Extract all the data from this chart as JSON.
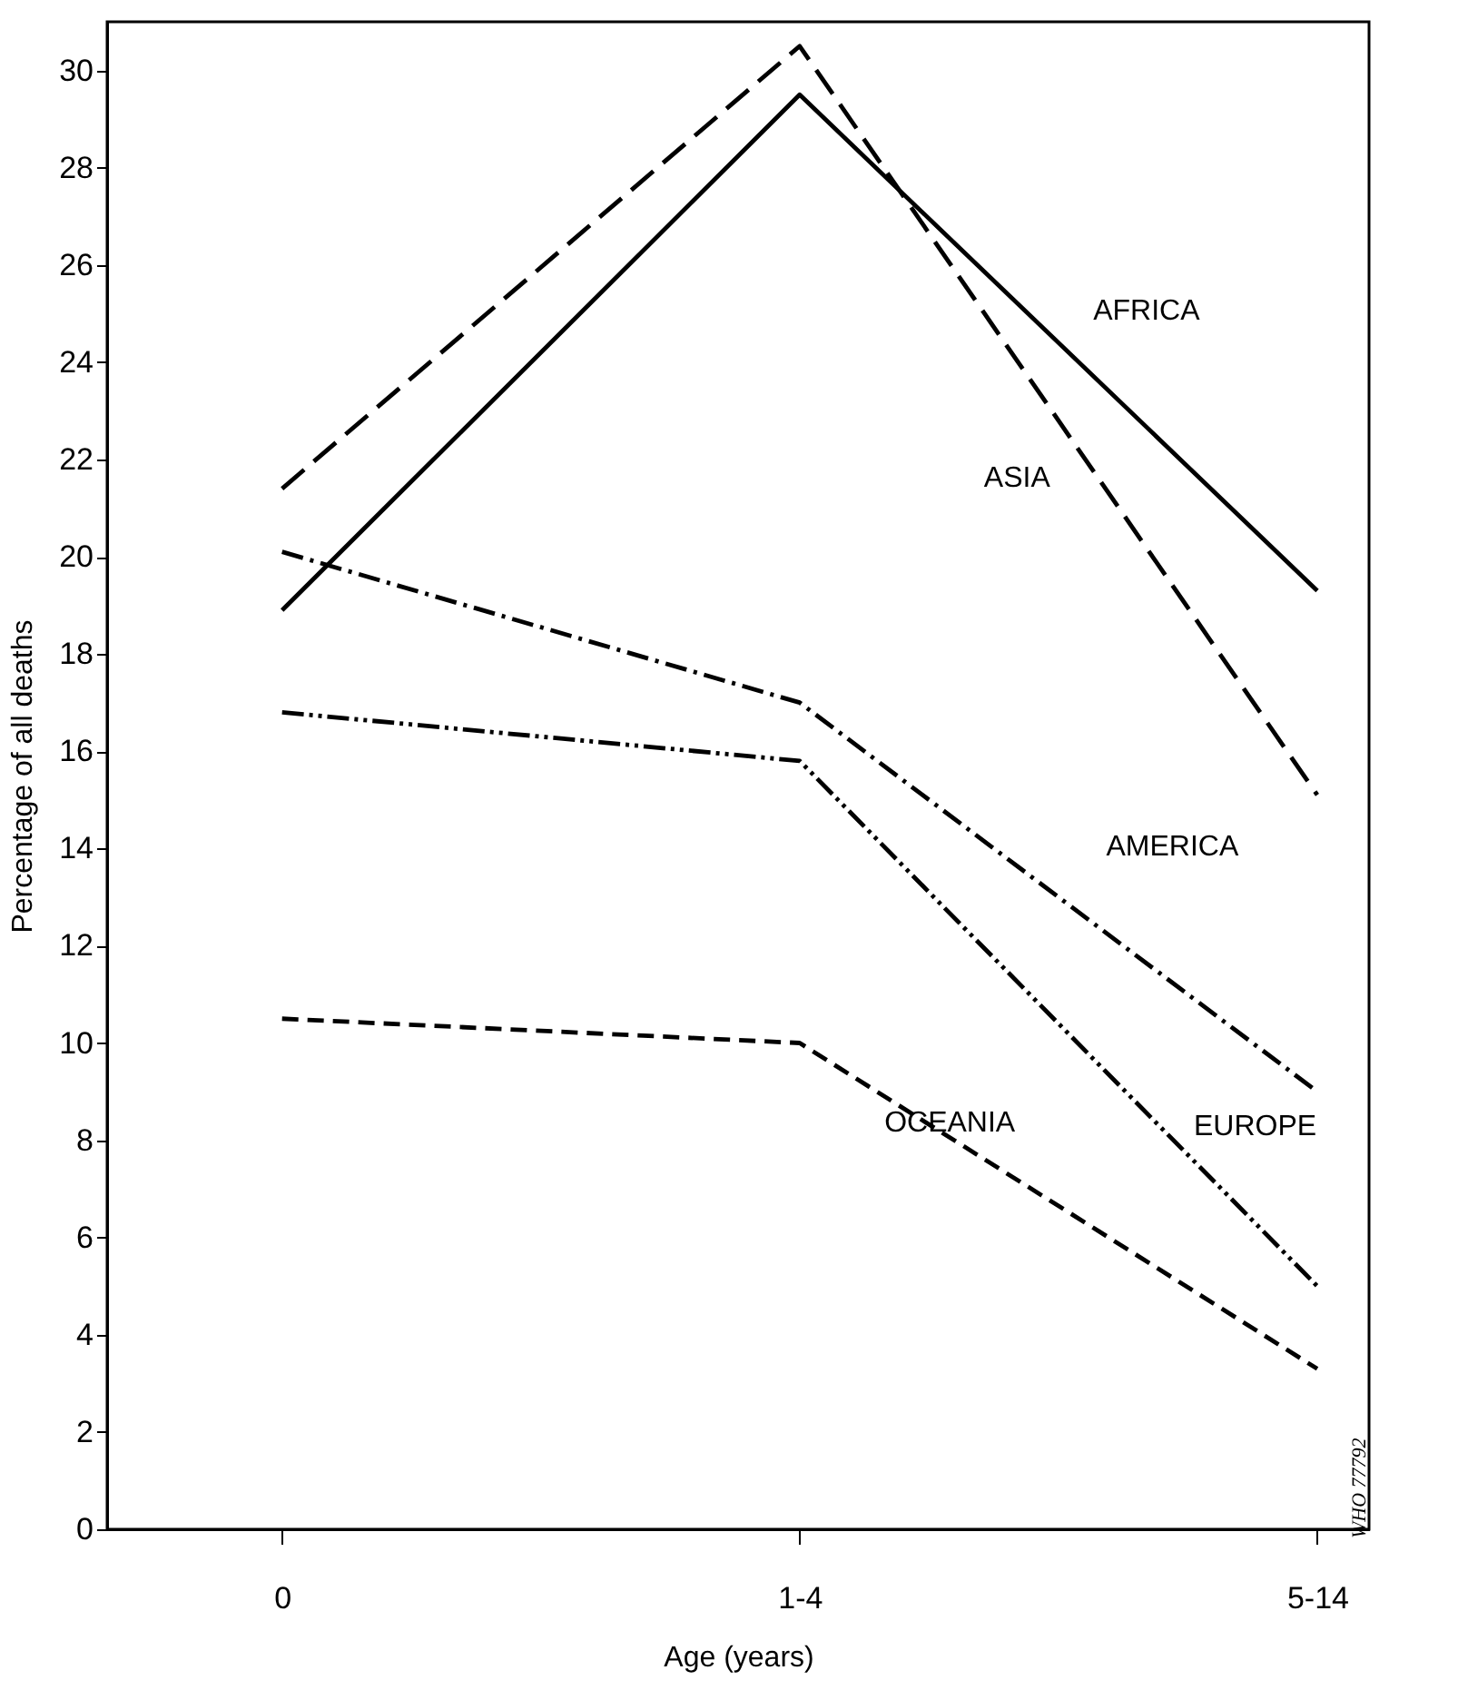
{
  "chart_data": {
    "type": "line",
    "xlabel": "Age (years)",
    "ylabel": "Percentage of all deaths",
    "categories": [
      "0",
      "1-4",
      "5-14"
    ],
    "series": [
      {
        "name": "AFRICA",
        "color": "#000000",
        "line_style": "solid",
        "values": [
          18.9,
          29.5,
          19.3
        ]
      },
      {
        "name": "ASIA",
        "color": "#000000",
        "line_style": "longdash",
        "values": [
          21.4,
          30.5,
          15.1
        ]
      },
      {
        "name": "AMERICA",
        "color": "#000000",
        "line_style": "dashdot",
        "values": [
          20.1,
          17.0,
          9.0
        ]
      },
      {
        "name": "EUROPE",
        "color": "#000000",
        "line_style": "dashdotdot",
        "values": [
          16.8,
          15.8,
          5.0
        ]
      },
      {
        "name": "OCEANIA",
        "color": "#000000",
        "line_style": "dashed",
        "values": [
          10.5,
          10.0,
          3.3
        ]
      }
    ],
    "ylim": [
      0,
      31
    ],
    "yticks": [
      0,
      2,
      4,
      6,
      8,
      10,
      12,
      14,
      16,
      18,
      20,
      22,
      24,
      26,
      28,
      30
    ],
    "grid": false,
    "marker": "none",
    "annotations": [
      "WHO 77792"
    ]
  }
}
